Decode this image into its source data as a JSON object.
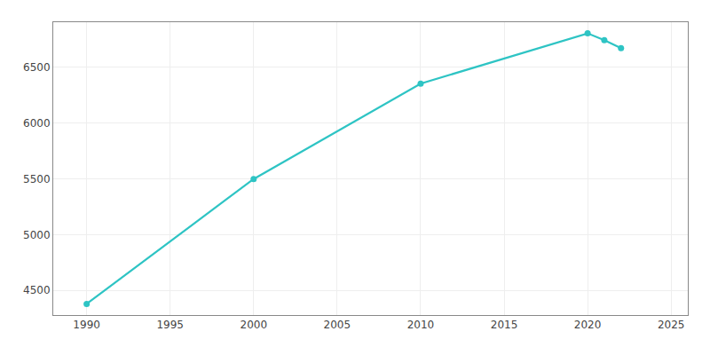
{
  "chart_data": {
    "type": "line",
    "x": [
      1990,
      2000,
      2010,
      2020,
      2021,
      2022
    ],
    "values": [
      4380,
      5497,
      6350,
      6800,
      6740,
      6668
    ],
    "color": "#2ec4c4",
    "marker": "circle",
    "xlim": [
      1988,
      2026
    ],
    "ylim": [
      4280,
      6900
    ],
    "xticks": [
      1990,
      1995,
      2000,
      2005,
      2010,
      2015,
      2020,
      2025
    ],
    "yticks": [
      4500,
      5000,
      5500,
      6000,
      6500
    ],
    "grid": true
  }
}
